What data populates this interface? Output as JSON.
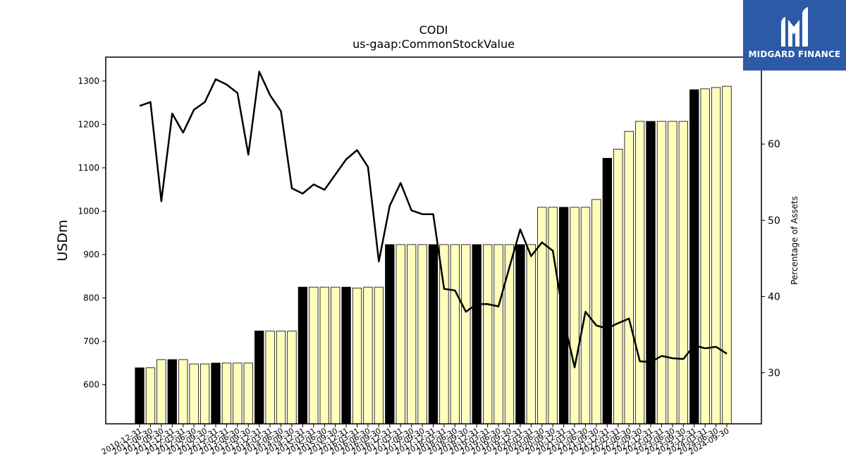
{
  "title": "CODI",
  "subtitle": "us-gaap:CommonStockValue",
  "logo": {
    "text": "MIDGARD FINANCE",
    "icon": "midgard-m-logo-icon",
    "background": "#2c5aa6"
  },
  "chart_data": {
    "type": "bar",
    "secondary_type": "line",
    "ylabel": "USDm",
    "y2label": "Percentage of Assets",
    "ylim": [
      510,
      1355
    ],
    "y2lim": [
      23.3,
      71.4
    ],
    "yticks": [
      600,
      700,
      800,
      900,
      1000,
      1100,
      1200,
      1300
    ],
    "y2ticks": [
      30,
      40,
      50,
      60
    ],
    "colors": {
      "highlight_bar": "#000000",
      "regular_bar": "#ffffbb",
      "line": "#000000"
    },
    "categories": [
      "2010-12-31",
      "2011-06-30",
      "2011-09-30",
      "2011-12-31",
      "2012-03-31",
      "2012-06-30",
      "2012-09-30",
      "2012-12-31",
      "2013-03-31",
      "2013-06-30",
      "2013-09-30",
      "2013-12-31",
      "2014-03-31",
      "2014-06-30",
      "2014-09-30",
      "2014-12-31",
      "2015-03-31",
      "2015-06-30",
      "2015-09-30",
      "2015-12-31",
      "2016-03-31",
      "2016-06-30",
      "2016-09-30",
      "2016-12-31",
      "2017-03-31",
      "2017-06-30",
      "2017-09-30",
      "2017-12-31",
      "2018-03-31",
      "2018-06-30",
      "2018-09-30",
      "2018-12-31",
      "2019-03-31",
      "2019-06-30",
      "2019-09-30",
      "2019-12-31",
      "2020-03-31",
      "2020-06-30",
      "2020-09-30",
      "2020-12-31",
      "2021-03-31",
      "2021-06-30",
      "2021-09-30",
      "2021-12-31",
      "2022-03-31",
      "2022-06-30",
      "2022-09-30",
      "2022-12-31",
      "2023-03-31",
      "2023-06-30",
      "2023-09-30",
      "2023-12-31",
      "2024-03-31",
      "2024-06-30",
      "2024-09-30"
    ],
    "series": [
      {
        "kind": "bar",
        "values": [
          639,
          639,
          658,
          658,
          658,
          648,
          648,
          650,
          650,
          650,
          650,
          724,
          724,
          724,
          724,
          825,
          825,
          825,
          825,
          825,
          823,
          825,
          825,
          923,
          923,
          923,
          923,
          923,
          923,
          923,
          923,
          923,
          923,
          923,
          923,
          923,
          923,
          1009,
          1009,
          1009,
          1009,
          1009,
          1027,
          1122,
          1143,
          1184,
          1207,
          1207,
          1207,
          1207,
          1207,
          1280,
          1282,
          1285,
          1288
        ],
        "highlighted": [
          true,
          false,
          false,
          true,
          false,
          false,
          false,
          true,
          false,
          false,
          false,
          true,
          false,
          false,
          false,
          true,
          false,
          false,
          false,
          true,
          false,
          false,
          false,
          true,
          false,
          false,
          false,
          true,
          false,
          false,
          false,
          true,
          false,
          false,
          false,
          true,
          false,
          false,
          false,
          true,
          false,
          false,
          false,
          true,
          false,
          false,
          false,
          true,
          false,
          false,
          false,
          true,
          false,
          false,
          false
        ]
      },
      {
        "kind": "line",
        "axis": "right",
        "values": [
          65.0,
          65.5,
          52.5,
          64.0,
          61.5,
          64.5,
          65.5,
          68.5,
          67.8,
          66.7,
          58.6,
          69.5,
          66.4,
          64.3,
          54.2,
          53.5,
          54.7,
          54.0,
          56.0,
          58.0,
          59.2,
          57.0,
          44.6,
          51.9,
          54.9,
          51.3,
          50.8,
          50.8,
          41.0,
          40.8,
          38.0,
          39.0,
          39.0,
          38.7,
          43.8,
          48.8,
          45.3,
          47.1,
          46.0,
          37.0,
          30.7,
          38.0,
          36.2,
          35.8,
          36.5,
          37.1,
          31.5,
          31.4,
          32.2,
          31.9,
          31.8,
          33.6,
          33.2,
          33.4,
          32.5
        ]
      }
    ]
  }
}
